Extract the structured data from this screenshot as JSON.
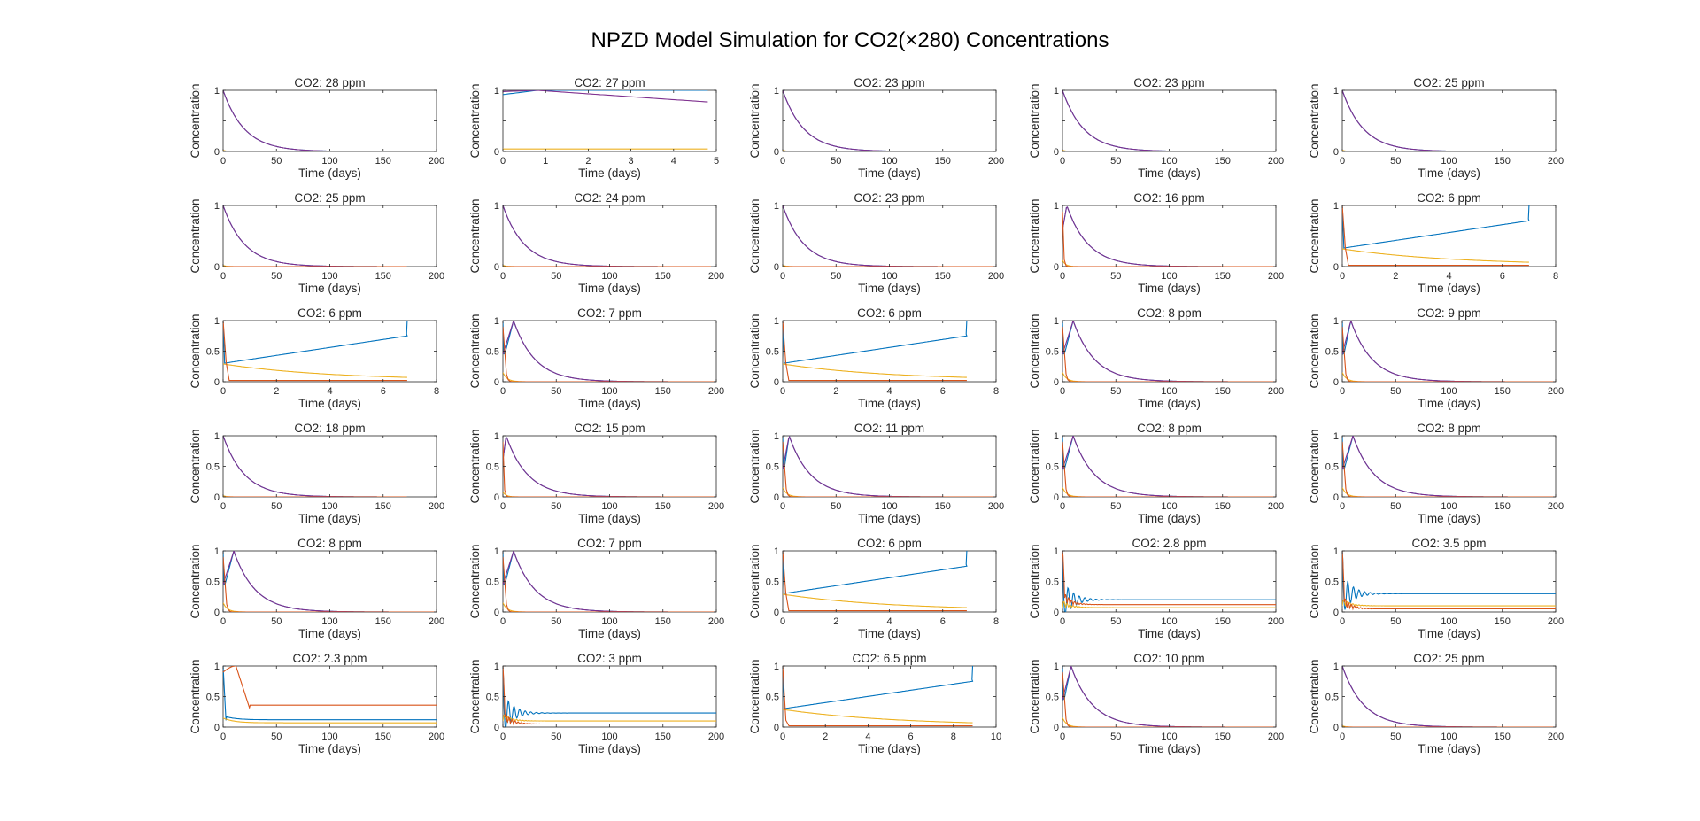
{
  "figure": {
    "title": "NPZD Model Simulation for CO2(×280) Concentrations"
  },
  "colors": {
    "N": "#0072BD",
    "P": "#D95319",
    "Z": "#EDB120",
    "D": "#7E2F8E",
    "axis": "#262626",
    "background": "#ffffff"
  },
  "chart_data": {
    "type": "line",
    "layout": "grid 6 rows x 5 columns",
    "series_order": [
      "blue",
      "red",
      "yellow",
      "purple"
    ],
    "legend": "none",
    "grid": false,
    "panels": [
      {
        "title": "CO2: 28 ppm",
        "xlabel": "Time (days)",
        "ylabel": "Concentration",
        "xlim": [
          0,
          200
        ],
        "xticks": [
          0,
          50,
          100,
          150,
          200
        ],
        "ylim": [
          0,
          1
        ],
        "yticks": [
          0,
          0.5,
          1
        ],
        "ytick_labels": [
          "0",
          "",
          "1"
        ],
        "pattern": "decay",
        "x_end": 172
      },
      {
        "title": "CO2: 27 ppm",
        "xlabel": "Time (days)",
        "ylabel": "Concentration",
        "xlim": [
          0,
          5
        ],
        "xticks": [
          0,
          1,
          2,
          3,
          4,
          5
        ],
        "ylim": [
          0,
          1
        ],
        "yticks": [
          0,
          0.5,
          1
        ],
        "ytick_labels": [
          "0",
          "",
          "1"
        ],
        "pattern": "slow",
        "x_end": 4.8
      },
      {
        "title": "CO2: 23 ppm",
        "xlabel": "Time (days)",
        "ylabel": "Concentration",
        "xlim": [
          0,
          200
        ],
        "xticks": [
          0,
          50,
          100,
          150,
          200
        ],
        "ylim": [
          0,
          1
        ],
        "yticks": [
          0,
          0.5,
          1
        ],
        "ytick_labels": [
          "0",
          "",
          "1"
        ],
        "pattern": "decay",
        "x_end": 200
      },
      {
        "title": "CO2: 23 ppm",
        "xlabel": "Time (days)",
        "ylabel": "Concentration",
        "xlim": [
          0,
          200
        ],
        "xticks": [
          0,
          50,
          100,
          150,
          200
        ],
        "ylim": [
          0,
          1
        ],
        "yticks": [
          0,
          0.5,
          1
        ],
        "ytick_labels": [
          "0",
          "",
          "1"
        ],
        "pattern": "decay",
        "x_end": 200
      },
      {
        "title": "CO2: 25 ppm",
        "xlabel": "Time (days)",
        "ylabel": "Concentration",
        "xlim": [
          0,
          200
        ],
        "xticks": [
          0,
          50,
          100,
          150,
          200
        ],
        "ylim": [
          0,
          1
        ],
        "yticks": [
          0,
          0.5,
          1
        ],
        "ytick_labels": [
          "0",
          "",
          "1"
        ],
        "pattern": "decay",
        "x_end": 200
      },
      {
        "title": "CO2: 25 ppm",
        "xlabel": "Time (days)",
        "ylabel": "Concentration",
        "xlim": [
          0,
          200
        ],
        "xticks": [
          0,
          50,
          100,
          150,
          200
        ],
        "ylim": [
          0,
          1
        ],
        "yticks": [
          0,
          0.5,
          1
        ],
        "ytick_labels": [
          "0",
          "",
          "1"
        ],
        "pattern": "decay",
        "x_end": 172
      },
      {
        "title": "CO2: 24 ppm",
        "xlabel": "Time (days)",
        "ylabel": "Concentration",
        "xlim": [
          0,
          200
        ],
        "xticks": [
          0,
          50,
          100,
          150,
          200
        ],
        "ylim": [
          0,
          1
        ],
        "yticks": [
          0,
          0.5,
          1
        ],
        "ytick_labels": [
          "0",
          "",
          "1"
        ],
        "pattern": "decay",
        "x_end": 195
      },
      {
        "title": "CO2: 23 ppm",
        "xlabel": "Time (days)",
        "ylabel": "Concentration",
        "xlim": [
          0,
          200
        ],
        "xticks": [
          0,
          50,
          100,
          150,
          200
        ],
        "ylim": [
          0,
          1
        ],
        "yticks": [
          0,
          0.5,
          1
        ],
        "ytick_labels": [
          "0",
          "",
          "1"
        ],
        "pattern": "decay",
        "x_end": 200
      },
      {
        "title": "CO2: 16 ppm",
        "xlabel": "Time (days)",
        "ylabel": "Concentration",
        "xlim": [
          0,
          200
        ],
        "xticks": [
          0,
          50,
          100,
          150,
          200
        ],
        "ylim": [
          0,
          1
        ],
        "yticks": [
          0,
          0.5,
          1
        ],
        "ytick_labels": [
          "0",
          "",
          "1"
        ],
        "pattern": "decay_spike",
        "x_end": 200,
        "peak_x": 4,
        "spike": 0.1
      },
      {
        "title": "CO2: 6 ppm",
        "xlabel": "Time (days)",
        "ylabel": "Concentration",
        "xlim": [
          0,
          8
        ],
        "xticks": [
          0,
          2,
          4,
          6,
          8
        ],
        "ylim": [
          0,
          1
        ],
        "yticks": [
          0,
          0.5,
          1
        ],
        "ytick_labels": [
          "0",
          "",
          "1"
        ],
        "pattern": "ramp",
        "x_end": 7.0
      },
      {
        "title": "CO2: 6 ppm",
        "xlabel": "Time (days)",
        "ylabel": "Concentration",
        "xlim": [
          0,
          8
        ],
        "xticks": [
          0,
          2,
          4,
          6,
          8
        ],
        "ylim": [
          0,
          1
        ],
        "yticks": [
          0,
          0.5,
          1
        ],
        "ytick_labels": [
          "0",
          "0.5",
          "1"
        ],
        "pattern": "ramp",
        "x_end": 6.9
      },
      {
        "title": "CO2: 7 ppm",
        "xlabel": "Time (days)",
        "ylabel": "Concentration",
        "xlim": [
          0,
          200
        ],
        "xticks": [
          0,
          50,
          100,
          150,
          200
        ],
        "ylim": [
          0,
          1
        ],
        "yticks": [
          0,
          0.5,
          1
        ],
        "ytick_labels": [
          "0",
          "0.5",
          "1"
        ],
        "pattern": "bloom",
        "x_end": 200,
        "peak_x": 10
      },
      {
        "title": "CO2: 6 ppm",
        "xlabel": "Time (days)",
        "ylabel": "Concentration",
        "xlim": [
          0,
          8
        ],
        "xticks": [
          0,
          2,
          4,
          6,
          8
        ],
        "ylim": [
          0,
          1
        ],
        "yticks": [
          0,
          0.5,
          1
        ],
        "ytick_labels": [
          "0",
          "0.5",
          "1"
        ],
        "pattern": "ramp",
        "x_end": 6.9
      },
      {
        "title": "CO2: 8 ppm",
        "xlabel": "Time (days)",
        "ylabel": "Concentration",
        "xlim": [
          0,
          200
        ],
        "xticks": [
          0,
          50,
          100,
          150,
          200
        ],
        "ylim": [
          0,
          1
        ],
        "yticks": [
          0,
          0.5,
          1
        ],
        "ytick_labels": [
          "0",
          "0.5",
          "1"
        ],
        "pattern": "bloom",
        "x_end": 200,
        "peak_x": 10
      },
      {
        "title": "CO2: 9 ppm",
        "xlabel": "Time (days)",
        "ylabel": "Concentration",
        "xlim": [
          0,
          200
        ],
        "xticks": [
          0,
          50,
          100,
          150,
          200
        ],
        "ylim": [
          0,
          1
        ],
        "yticks": [
          0,
          0.5,
          1
        ],
        "ytick_labels": [
          "0",
          "0.5",
          "1"
        ],
        "pattern": "bloom",
        "x_end": 200,
        "peak_x": 8
      },
      {
        "title": "CO2: 18 ppm",
        "xlabel": "Time (days)",
        "ylabel": "Concentration",
        "xlim": [
          0,
          200
        ],
        "xticks": [
          0,
          50,
          100,
          150,
          200
        ],
        "ylim": [
          0,
          1
        ],
        "yticks": [
          0,
          0.5,
          1
        ],
        "ytick_labels": [
          "0",
          "0.5",
          "1"
        ],
        "pattern": "decay",
        "x_end": 172
      },
      {
        "title": "CO2: 15 ppm",
        "xlabel": "Time (days)",
        "ylabel": "Concentration",
        "xlim": [
          0,
          200
        ],
        "xticks": [
          0,
          50,
          100,
          150,
          200
        ],
        "ylim": [
          0,
          1
        ],
        "yticks": [
          0,
          0.5,
          1
        ],
        "ytick_labels": [
          "0",
          "0.5",
          "1"
        ],
        "pattern": "decay_spike",
        "x_end": 200,
        "peak_x": 3,
        "spike": 0.08
      },
      {
        "title": "CO2: 11 ppm",
        "xlabel": "Time (days)",
        "ylabel": "Concentration",
        "xlim": [
          0,
          200
        ],
        "xticks": [
          0,
          50,
          100,
          150,
          200
        ],
        "ylim": [
          0,
          1
        ],
        "yticks": [
          0,
          0.5,
          1
        ],
        "ytick_labels": [
          "0",
          "0.5",
          "1"
        ],
        "pattern": "bloom",
        "x_end": 200,
        "peak_x": 6
      },
      {
        "title": "CO2: 8 ppm",
        "xlabel": "Time (days)",
        "ylabel": "Concentration",
        "xlim": [
          0,
          200
        ],
        "xticks": [
          0,
          50,
          100,
          150,
          200
        ],
        "ylim": [
          0,
          1
        ],
        "yticks": [
          0,
          0.5,
          1
        ],
        "ytick_labels": [
          "0",
          "0.5",
          "1"
        ],
        "pattern": "bloom",
        "x_end": 200,
        "peak_x": 10
      },
      {
        "title": "CO2: 8 ppm",
        "xlabel": "Time (days)",
        "ylabel": "Concentration",
        "xlim": [
          0,
          200
        ],
        "xticks": [
          0,
          50,
          100,
          150,
          200
        ],
        "ylim": [
          0,
          1
        ],
        "yticks": [
          0,
          0.5,
          1
        ],
        "ytick_labels": [
          "0",
          "0.5",
          "1"
        ],
        "pattern": "bloom",
        "x_end": 200,
        "peak_x": 10
      },
      {
        "title": "CO2: 8 ppm",
        "xlabel": "Time (days)",
        "ylabel": "Concentration",
        "xlim": [
          0,
          200
        ],
        "xticks": [
          0,
          50,
          100,
          150,
          200
        ],
        "ylim": [
          0,
          1
        ],
        "yticks": [
          0,
          0.5,
          1
        ],
        "ytick_labels": [
          "0",
          "0.5",
          "1"
        ],
        "pattern": "bloom",
        "x_end": 200,
        "peak_x": 10
      },
      {
        "title": "CO2: 7 ppm",
        "xlabel": "Time (days)",
        "ylabel": "Concentration",
        "xlim": [
          0,
          200
        ],
        "xticks": [
          0,
          50,
          100,
          150,
          200
        ],
        "ylim": [
          0,
          1
        ],
        "yticks": [
          0,
          0.5,
          1
        ],
        "ytick_labels": [
          "0",
          "0.5",
          "1"
        ],
        "pattern": "bloom",
        "x_end": 200,
        "peak_x": 10
      },
      {
        "title": "CO2: 6 ppm",
        "xlabel": "Time (days)",
        "ylabel": "Concentration",
        "xlim": [
          0,
          8
        ],
        "xticks": [
          0,
          2,
          4,
          6,
          8
        ],
        "ylim": [
          0,
          1
        ],
        "yticks": [
          0,
          0.5,
          1
        ],
        "ytick_labels": [
          "0",
          "0.5",
          "1"
        ],
        "pattern": "ramp",
        "x_end": 6.9
      },
      {
        "title": "CO2: 2.8 ppm",
        "xlabel": "Time (days)",
        "ylabel": "Concentration",
        "xlim": [
          0,
          200
        ],
        "xticks": [
          0,
          50,
          100,
          150,
          200
        ],
        "ylim": [
          0,
          1
        ],
        "yticks": [
          0,
          0.5,
          1
        ],
        "ytick_labels": [
          "0",
          "0.5",
          "1"
        ],
        "pattern": "oscillate",
        "x_end": 200,
        "steady": {
          "blue": 0.2,
          "red": 0.12,
          "yellow": 0.07
        }
      },
      {
        "title": "CO2: 3.5 ppm",
        "xlabel": "Time (days)",
        "ylabel": "Concentration",
        "xlim": [
          0,
          200
        ],
        "xticks": [
          0,
          50,
          100,
          150,
          200
        ],
        "ylim": [
          0,
          1
        ],
        "yticks": [
          0,
          0.5,
          1
        ],
        "ytick_labels": [
          "0",
          "0.5",
          "1"
        ],
        "pattern": "oscillate",
        "x_end": 200,
        "steady": {
          "blue": 0.3,
          "red": 0.05,
          "yellow": 0.1
        }
      },
      {
        "title": "CO2: 2.3 ppm",
        "xlabel": "Time (days)",
        "ylabel": "Concentration",
        "xlim": [
          0,
          200
        ],
        "xticks": [
          0,
          50,
          100,
          150,
          200
        ],
        "ylim": [
          0,
          1
        ],
        "yticks": [
          0,
          0.5,
          1
        ],
        "ytick_labels": [
          "0",
          "0.5",
          "1"
        ],
        "pattern": "redbloom",
        "x_end": 200,
        "steady": {
          "blue": 0.12,
          "red": 0.36,
          "yellow": 0.07
        }
      },
      {
        "title": "CO2: 3 ppm",
        "xlabel": "Time (days)",
        "ylabel": "Concentration",
        "xlim": [
          0,
          200
        ],
        "xticks": [
          0,
          50,
          100,
          150,
          200
        ],
        "ylim": [
          0,
          1
        ],
        "yticks": [
          0,
          0.5,
          1
        ],
        "ytick_labels": [
          "0",
          "0.5",
          "1"
        ],
        "pattern": "oscillate",
        "x_end": 200,
        "steady": {
          "blue": 0.23,
          "red": 0.05,
          "yellow": 0.1
        }
      },
      {
        "title": "CO2: 6.5 ppm",
        "xlabel": "Time (days)",
        "ylabel": "Concentration",
        "xlim": [
          0,
          10
        ],
        "xticks": [
          0,
          2,
          4,
          6,
          8,
          10
        ],
        "ylim": [
          0,
          1
        ],
        "yticks": [
          0,
          0.5,
          1
        ],
        "ytick_labels": [
          "0",
          "0.5",
          "1"
        ],
        "pattern": "ramp",
        "x_end": 8.9
      },
      {
        "title": "CO2: 10 ppm",
        "xlabel": "Time (days)",
        "ylabel": "Concentration",
        "xlim": [
          0,
          200
        ],
        "xticks": [
          0,
          50,
          100,
          150,
          200
        ],
        "ylim": [
          0,
          1
        ],
        "yticks": [
          0,
          0.5,
          1
        ],
        "ytick_labels": [
          "0",
          "0.5",
          "1"
        ],
        "pattern": "bloom",
        "x_end": 200,
        "peak_x": 8
      },
      {
        "title": "CO2: 25 ppm",
        "xlabel": "Time (days)",
        "ylabel": "Concentration",
        "xlim": [
          0,
          200
        ],
        "xticks": [
          0,
          50,
          100,
          150,
          200
        ],
        "ylim": [
          0,
          1
        ],
        "yticks": [
          0,
          0.5,
          1
        ],
        "ytick_labels": [
          "0",
          "0.5",
          "1"
        ],
        "pattern": "decay",
        "x_end": 200
      }
    ]
  }
}
